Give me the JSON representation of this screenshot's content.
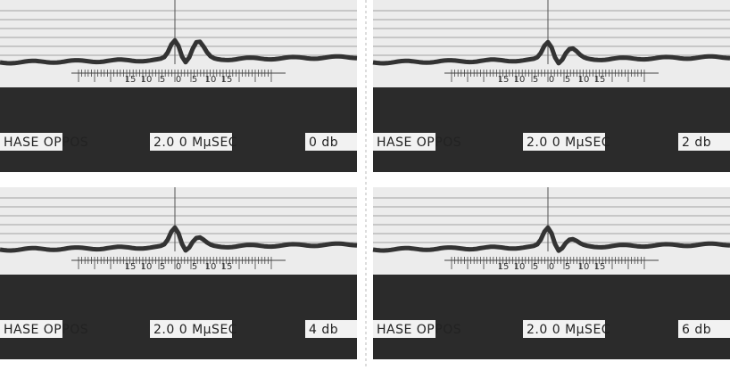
{
  "scale_labels": [
    "15",
    "10",
    "5",
    "0",
    "5",
    "10",
    "15"
  ],
  "panels": [
    {
      "mode": "HASE OPPOS",
      "time": "2.0 0 MμSEC",
      "gain": "0 db"
    },
    {
      "mode": "HASE OPPOS",
      "time": "2.0 0 MμSEC",
      "gain": "2 db"
    },
    {
      "mode": "HASE OPPOS",
      "time": "2.0 0 MμSEC",
      "gain": "4 db"
    },
    {
      "mode": "HASE OPPOS",
      "time": "2.0 0 MμSEC",
      "gain": "6 db"
    }
  ]
}
